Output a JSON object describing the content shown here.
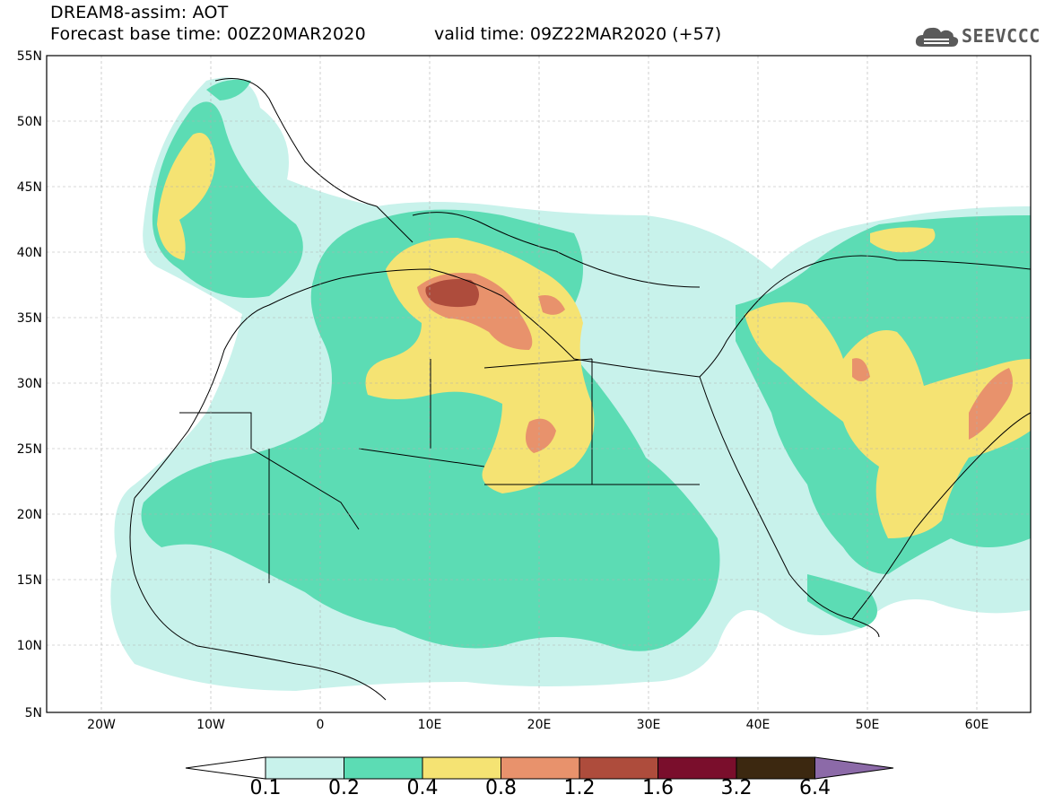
{
  "header": {
    "title": "DREAM8-assim: AOT",
    "base_time": "Forecast base time: 00Z20MAR2020",
    "valid_time": "valid time: 09Z22MAR2020 (+57)"
  },
  "logo": {
    "text": "SEEVCCC",
    "icon": "cloud-icon"
  },
  "map": {
    "lat_labels": [
      "55N",
      "50N",
      "45N",
      "40N",
      "35N",
      "30N",
      "25N",
      "20N",
      "15N",
      "10N",
      "5N"
    ],
    "lon_labels": [
      "20W",
      "10W",
      "0",
      "10E",
      "20E",
      "30E",
      "40E",
      "50E",
      "60E"
    ]
  },
  "colorbar": {
    "labels": [
      "0.1",
      "0.2",
      "0.4",
      "0.8",
      "1.2",
      "1.6",
      "3.2",
      "6.4"
    ],
    "colors": [
      "#ffffff",
      "#c8f2eb",
      "#5cdcb4",
      "#f5e373",
      "#e8926c",
      "#ae4c3c",
      "#7a0e2c",
      "#3c2810",
      "#8c6aa8"
    ]
  }
}
